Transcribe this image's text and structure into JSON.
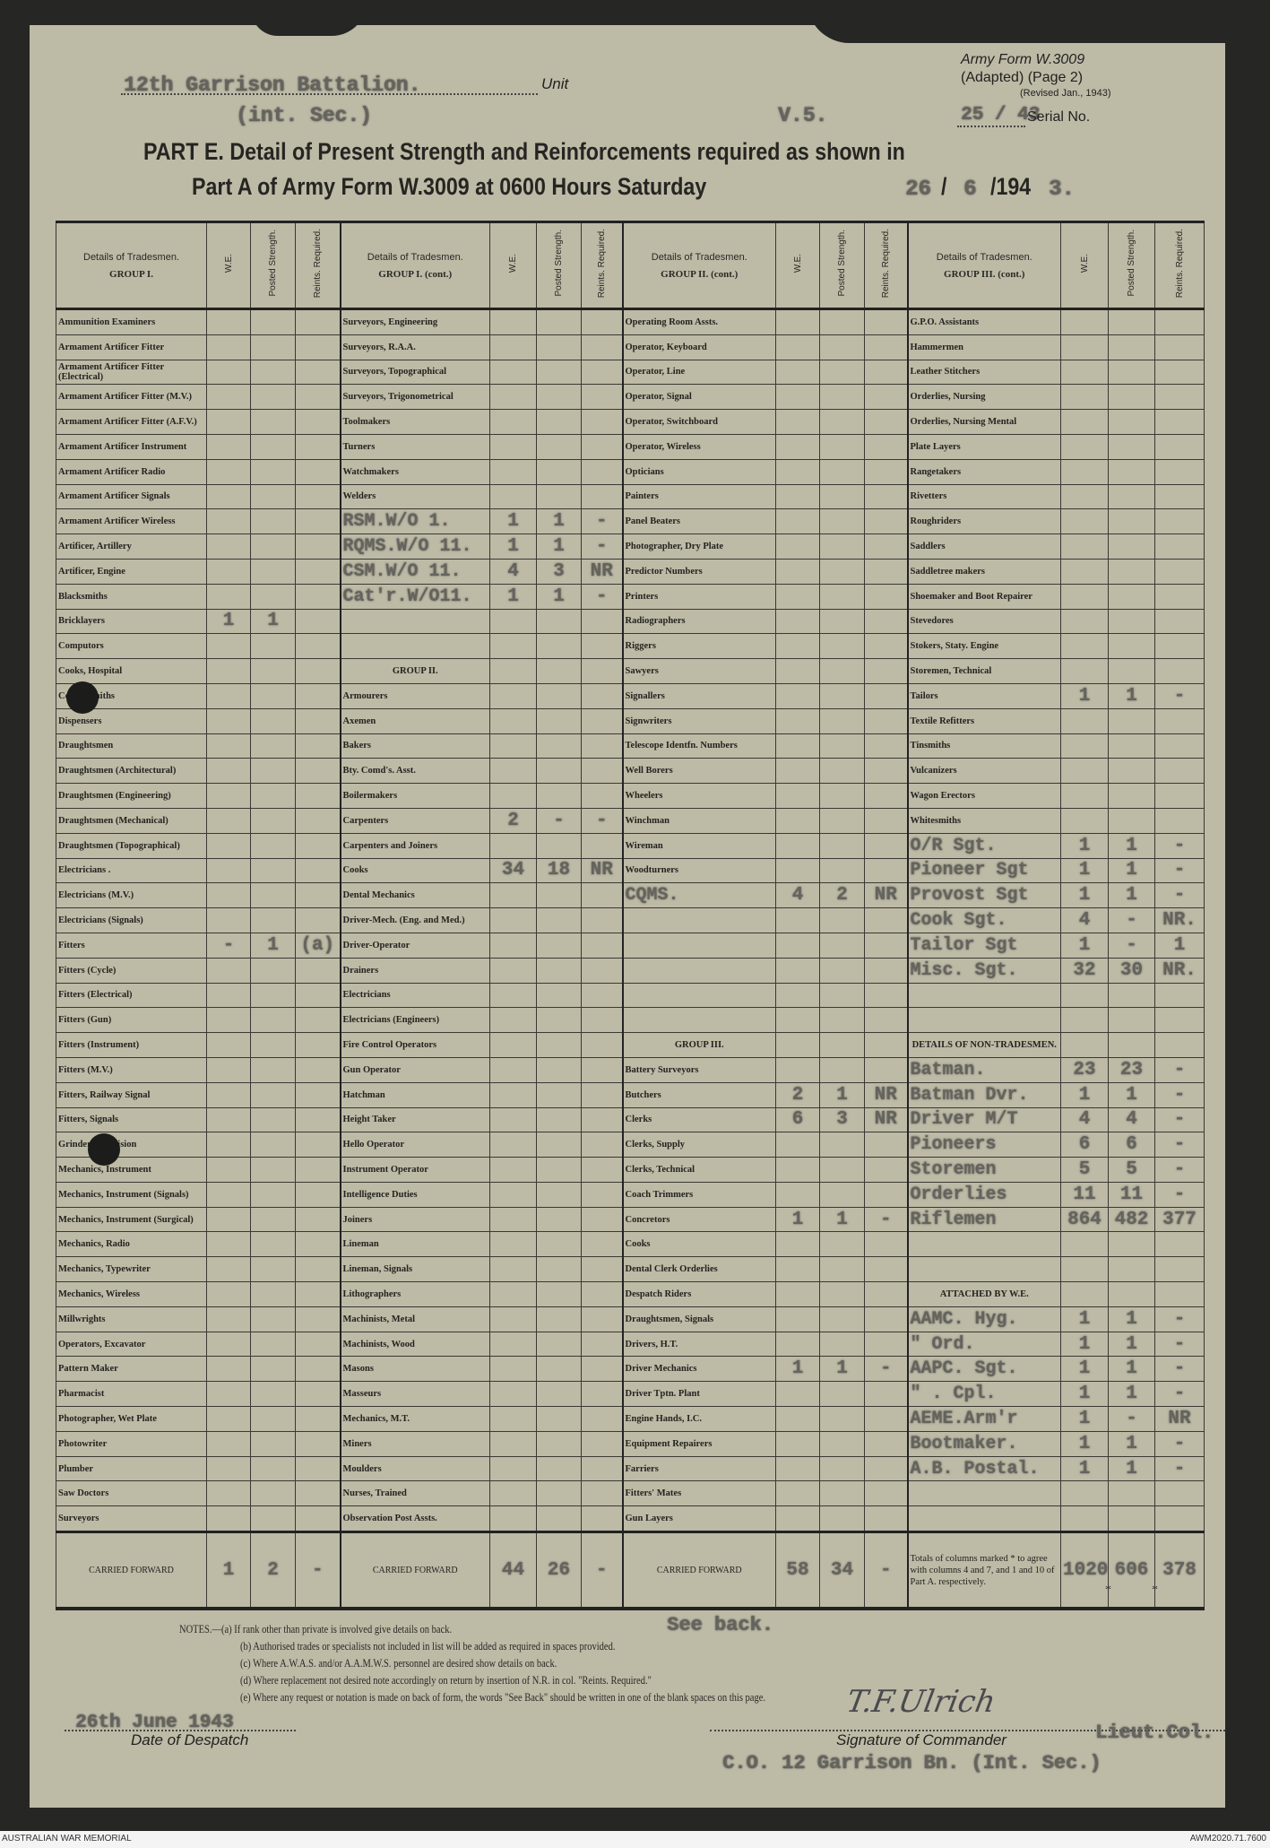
{
  "header": {
    "unit_typed": "12th Garrison Battalion.",
    "unit_label": "Unit",
    "unit_typed_line2": "(int. Sec.)",
    "ref_typed": "V.5.",
    "form_name": "Army Form  W.3009",
    "form_adapted": "(Adapted)  (Page 2)",
    "form_revised": "(Revised Jan., 1943)",
    "serial_typed": "25 / 43",
    "serial_label": "Serial No.",
    "title_line1": "PART E.  Detail of Present Strength and Reinforcements required as shown in",
    "title_line2": "Part A of Army Form W.3009 at 0600 Hours Saturday",
    "date_day": "26",
    "date_month": "6",
    "date_year_printed": "/194",
    "date_year_typed": "3."
  },
  "table": {
    "details_label": "Details of Tradesmen.",
    "col_we": "W.E.",
    "col_posted": "Posted Strength.",
    "col_reints": "Reints. Required.",
    "columns": [
      {
        "group": "GROUP I.",
        "rows": [
          {
            "label": "Ammunition Examiners"
          },
          {
            "label": "Armament Artificer Fitter"
          },
          {
            "label": "Armament Artificer Fitter (Electrical)"
          },
          {
            "label": "Armament Artificer Fitter (M.V.)"
          },
          {
            "label": "Armament Artificer Fitter (A.F.V.)"
          },
          {
            "label": "Armament Artificer Instrument"
          },
          {
            "label": "Armament Artificer Radio"
          },
          {
            "label": "Armament Artificer Signals"
          },
          {
            "label": "Armament Artificer Wireless"
          },
          {
            "label": "Artificer, Artillery"
          },
          {
            "label": "Artificer, Engine"
          },
          {
            "label": "Blacksmiths"
          },
          {
            "label": "Bricklayers",
            "we": "1",
            "ps": "1"
          },
          {
            "label": "Computors"
          },
          {
            "label": "Cooks, Hospital"
          },
          {
            "label": "Coppersmiths"
          },
          {
            "label": "Dispensers"
          },
          {
            "label": "Draughtsmen"
          },
          {
            "label": "Draughtsmen (Architectural)"
          },
          {
            "label": "Draughtsmen (Engineering)"
          },
          {
            "label": "Draughtsmen (Mechanical)"
          },
          {
            "label": "Draughtsmen (Topographical)"
          },
          {
            "label": "Electricians ."
          },
          {
            "label": "Electricians (M.V.)"
          },
          {
            "label": "Electricians (Signals)"
          },
          {
            "label": "Fitters",
            "we": "-",
            "ps": "1",
            "rr": "(a)"
          },
          {
            "label": "Fitters (Cycle)"
          },
          {
            "label": "Fitters (Electrical)"
          },
          {
            "label": "Fitters (Gun)"
          },
          {
            "label": "Fitters (Instrument)"
          },
          {
            "label": "Fitters (M.V.)"
          },
          {
            "label": "Fitters, Railway Signal"
          },
          {
            "label": "Fitters, Signals"
          },
          {
            "label": "Grinders, Precision"
          },
          {
            "label": "Mechanics, Instrument"
          },
          {
            "label": "Mechanics, Instrument (Signals)"
          },
          {
            "label": "Mechanics, Instrument (Surgical)"
          },
          {
            "label": "Mechanics, Radio"
          },
          {
            "label": "Mechanics, Typewriter"
          },
          {
            "label": "Mechanics, Wireless"
          },
          {
            "label": "Millwrights"
          },
          {
            "label": "Operators, Excavator"
          },
          {
            "label": "Pattern Maker"
          },
          {
            "label": "Pharmacist"
          },
          {
            "label": "Photographer, Wet Plate"
          },
          {
            "label": "Photowriter"
          },
          {
            "label": "Plumber"
          },
          {
            "label": "Saw Doctors"
          },
          {
            "label": "Surveyors"
          }
        ],
        "carried_forward": {
          "label": "CARRIED FORWARD",
          "we": "1",
          "ps": "2",
          "rr": "-"
        }
      },
      {
        "group": "GROUP I. (cont.)",
        "rows": [
          {
            "label": "Surveyors, Engineering"
          },
          {
            "label": "Surveyors, R.A.A."
          },
          {
            "label": "Surveyors, Topographical"
          },
          {
            "label": "Surveyors, Trigonometrical"
          },
          {
            "label": "Toolmakers"
          },
          {
            "label": "Turners"
          },
          {
            "label": "Watchmakers"
          },
          {
            "label": "Welders"
          },
          {
            "label": "RSM.W/O 1.",
            "typed": true,
            "we": "1",
            "ps": "1",
            "rr": "-"
          },
          {
            "label": "RQMS.W/O 11.",
            "typed": true,
            "we": "1",
            "ps": "1",
            "rr": "-"
          },
          {
            "label": "CSM.W/O 11.",
            "typed": true,
            "we": "4",
            "ps": "3",
            "rr": "NR"
          },
          {
            "label": "Cat'r.W/O11.",
            "typed": true,
            "we": "1",
            "ps": "1",
            "rr": "-"
          },
          {
            "label": ""
          },
          {
            "label": ""
          },
          {
            "label": "GROUP II.",
            "heading": true
          },
          {
            "label": "Armourers"
          },
          {
            "label": "Axemen"
          },
          {
            "label": "Bakers"
          },
          {
            "label": "Bty. Comd's. Asst."
          },
          {
            "label": "Boilermakers"
          },
          {
            "label": "Carpenters",
            "we": "2",
            "ps": "-",
            "rr": "-"
          },
          {
            "label": "Carpenters and Joiners"
          },
          {
            "label": "Cooks",
            "we": "34",
            "ps": "18",
            "rr": "NR"
          },
          {
            "label": "Dental Mechanics"
          },
          {
            "label": "Driver-Mech. (Eng. and Med.)"
          },
          {
            "label": "Driver-Operator"
          },
          {
            "label": "Drainers"
          },
          {
            "label": "Electricians"
          },
          {
            "label": "Electricians (Engineers)"
          },
          {
            "label": "Fire Control Operators"
          },
          {
            "label": "Gun Operator"
          },
          {
            "label": "Hatchman"
          },
          {
            "label": "Height Taker"
          },
          {
            "label": "Hello Operator"
          },
          {
            "label": "Instrument Operator"
          },
          {
            "label": "Intelligence Duties"
          },
          {
            "label": "Joiners"
          },
          {
            "label": "Lineman"
          },
          {
            "label": "Lineman, Signals"
          },
          {
            "label": "Lithographers"
          },
          {
            "label": "Machinists, Metal"
          },
          {
            "label": "Machinists, Wood"
          },
          {
            "label": "Masons"
          },
          {
            "label": "Masseurs"
          },
          {
            "label": "Mechanics, M.T."
          },
          {
            "label": "Miners"
          },
          {
            "label": "Moulders"
          },
          {
            "label": "Nurses, Trained"
          },
          {
            "label": "Observation Post Assts."
          }
        ],
        "carried_forward": {
          "label": "CARRIED FORWARD",
          "we": "44",
          "ps": "26",
          "rr": "-"
        }
      },
      {
        "group": "GROUP II. (cont.)",
        "rows": [
          {
            "label": "Operating Room Assts."
          },
          {
            "label": "Operator, Keyboard"
          },
          {
            "label": "Operator, Line"
          },
          {
            "label": "Operator, Signal"
          },
          {
            "label": "Operator, Switchboard"
          },
          {
            "label": "Operator, Wireless"
          },
          {
            "label": "Opticians"
          },
          {
            "label": "Painters"
          },
          {
            "label": "Panel Beaters"
          },
          {
            "label": "Photographer, Dry Plate"
          },
          {
            "label": "Predictor Numbers"
          },
          {
            "label": "Printers"
          },
          {
            "label": "Radiographers"
          },
          {
            "label": "Riggers"
          },
          {
            "label": "Sawyers"
          },
          {
            "label": "Signallers"
          },
          {
            "label": "Signwriters"
          },
          {
            "label": "Telescope Identfn. Numbers"
          },
          {
            "label": "Well Borers"
          },
          {
            "label": "Wheelers"
          },
          {
            "label": "Winchman"
          },
          {
            "label": "Wireman"
          },
          {
            "label": "Woodturners"
          },
          {
            "label": "CQMS.",
            "typed": true,
            "we": "4",
            "ps": "2",
            "rr": "NR"
          },
          {
            "label": ""
          },
          {
            "label": ""
          },
          {
            "label": ""
          },
          {
            "label": ""
          },
          {
            "label": ""
          },
          {
            "label": "GROUP III.",
            "heading": true
          },
          {
            "label": "Battery Surveyors"
          },
          {
            "label": "Butchers",
            "we": "2",
            "ps": "1",
            "rr": "NR"
          },
          {
            "label": "Clerks",
            "we": "6",
            "ps": "3",
            "rr": "NR"
          },
          {
            "label": "Clerks, Supply"
          },
          {
            "label": "Clerks, Technical"
          },
          {
            "label": "Coach Trimmers"
          },
          {
            "label": "Concretors",
            "we": "1",
            "ps": "1",
            "rr": "-"
          },
          {
            "label": "Cooks"
          },
          {
            "label": "Dental Clerk Orderlies"
          },
          {
            "label": "Despatch Riders"
          },
          {
            "label": "Draughtsmen, Signals"
          },
          {
            "label": "Drivers, H.T."
          },
          {
            "label": "Driver Mechanics",
            "we": "1",
            "ps": "1",
            "rr": "-"
          },
          {
            "label": "Driver Tptn. Plant"
          },
          {
            "label": "Engine Hands, I.C."
          },
          {
            "label": "Equipment Repairers"
          },
          {
            "label": "Farriers"
          },
          {
            "label": "Fitters' Mates"
          },
          {
            "label": "Gun Layers"
          }
        ],
        "carried_forward": {
          "label": "CARRIED FORWARD",
          "we": "58",
          "ps": "34",
          "rr": "-"
        }
      },
      {
        "group": "GROUP III. (cont.)",
        "rows": [
          {
            "label": "G.P.O. Assistants"
          },
          {
            "label": "Hammermen"
          },
          {
            "label": "Leather Stitchers"
          },
          {
            "label": "Orderlies, Nursing"
          },
          {
            "label": "Orderlies, Nursing Mental"
          },
          {
            "label": "Plate Layers"
          },
          {
            "label": "Rangetakers"
          },
          {
            "label": "Rivetters"
          },
          {
            "label": "Roughriders"
          },
          {
            "label": "Saddlers"
          },
          {
            "label": "Saddletree makers"
          },
          {
            "label": "Shoemaker and Boot Repairer"
          },
          {
            "label": "Stevedores"
          },
          {
            "label": "Stokers, Staty. Engine"
          },
          {
            "label": "Storemen, Technical"
          },
          {
            "label": "Tailors",
            "we": "1",
            "ps": "1",
            "rr": "-"
          },
          {
            "label": "Textile Refitters"
          },
          {
            "label": "Tinsmiths"
          },
          {
            "label": "Vulcanizers"
          },
          {
            "label": "Wagon Erectors"
          },
          {
            "label": "Whitesmiths"
          },
          {
            "label": "O/R Sgt.",
            "typed": true,
            "we": "1",
            "ps": "1",
            "rr": "-"
          },
          {
            "label": "Pioneer Sgt",
            "typed": true,
            "we": "1",
            "ps": "1",
            "rr": "-"
          },
          {
            "label": "Provost Sgt",
            "typed": true,
            "we": "1",
            "ps": "1",
            "rr": "-"
          },
          {
            "label": "Cook Sgt.",
            "typed": true,
            "we": "4",
            "ps": "-",
            "rr": "NR."
          },
          {
            "label": "Tailor Sgt",
            "typed": true,
            "we": "1",
            "ps": "-",
            "rr": "1"
          },
          {
            "label": "Misc. Sgt.",
            "typed": true,
            "we": "32",
            "ps": "30",
            "rr": "NR."
          },
          {
            "label": ""
          },
          {
            "label": ""
          },
          {
            "label": "DETAILS OF NON-TRADESMEN.",
            "heading": true
          },
          {
            "label": "Batman.",
            "typed": true,
            "we": "23",
            "ps": "23",
            "rr": "-"
          },
          {
            "label": "Batman Dvr.",
            "typed": true,
            "we": "1",
            "ps": "1",
            "rr": "-"
          },
          {
            "label": "Driver M/T",
            "typed": true,
            "we": "4",
            "ps": "4",
            "rr": "-"
          },
          {
            "label": "Pioneers",
            "typed": true,
            "we": "6",
            "ps": "6",
            "rr": "-"
          },
          {
            "label": "Storemen",
            "typed": true,
            "we": "5",
            "ps": "5",
            "rr": "-"
          },
          {
            "label": "Orderlies",
            "typed": true,
            "we": "11",
            "ps": "11",
            "rr": "-"
          },
          {
            "label": "Riflemen",
            "typed": true,
            "we": "864",
            "ps": "482",
            "rr": "377"
          },
          {
            "label": ""
          },
          {
            "label": ""
          },
          {
            "label": "ATTACHED BY W.E.",
            "heading": true
          },
          {
            "label": "AAMC. Hyg.",
            "typed": true,
            "we": "1",
            "ps": "1",
            "rr": "-"
          },
          {
            "label": "\"    Ord.",
            "typed": true,
            "we": "1",
            "ps": "1",
            "rr": "-"
          },
          {
            "label": "AAPC. Sgt.",
            "typed": true,
            "we": "1",
            "ps": "1",
            "rr": "-"
          },
          {
            "label": "\"  . Cpl.",
            "typed": true,
            "we": "1",
            "ps": "1",
            "rr": "-"
          },
          {
            "label": "AEME.Arm'r",
            "typed": true,
            "we": "1",
            "ps": "-",
            "rr": "NR"
          },
          {
            "label": "Bootmaker.",
            "typed": true,
            "we": "1",
            "ps": "1",
            "rr": "-"
          },
          {
            "label": "A.B. Postal.",
            "typed": true,
            "we": "1",
            "ps": "1",
            "rr": "-"
          },
          {
            "label": ""
          },
          {
            "label": ""
          }
        ],
        "carried_forward": {
          "label": "Totals of columns marked * to agree with columns 4 and 7, and 1 and 10 of Part A. respectively.",
          "we": "1020",
          "ps": "606",
          "rr": "378",
          "asterisk": "*"
        }
      }
    ]
  },
  "notes": {
    "lead": "NOTES.—(a) If rank other than private is involved give details on back.",
    "see_back_typed": "See back.",
    "b": "(b) Authorised trades or specialists not included in list will be added as required in spaces provided.",
    "c": "(c) Where A.W.A.S. and/or A.A.M.W.S. personnel are desired show details on back.",
    "d": "(d) Where replacement not desired note accordingly on return by insertion of N.R. in col. \"Reints. Required.\"",
    "e": "(e) Where any request or notation is made on back of form, the words \"See Back\" should be written in one of the blank spaces on this page."
  },
  "footer": {
    "date_typed": "26th June 1943",
    "date_label": "Date of Despatch",
    "signature": "T.F.Ulrich",
    "rank_typed": "Lieut.Col.",
    "signature_label": "Signature of Commander",
    "appointment_typed": "C.O. 12 Garrison Bn. (Int. Sec.)"
  },
  "caption": {
    "left": "AUSTRALIAN WAR MEMORIAL",
    "right": "AWM2020.71.7600"
  },
  "colors": {
    "paper": "#bdbaa6",
    "typed_ink": "#65635d",
    "print_ink": "#232220",
    "background": "#262624"
  }
}
